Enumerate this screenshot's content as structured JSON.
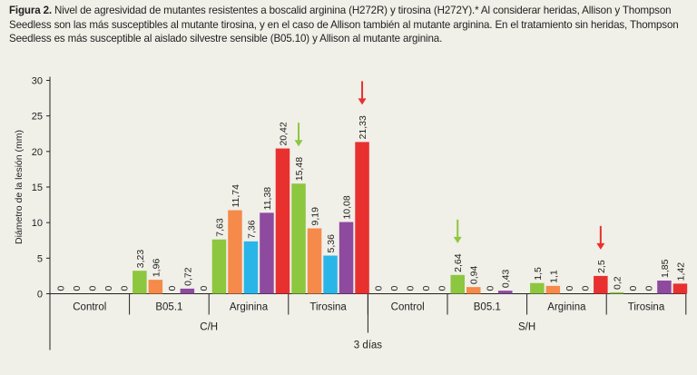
{
  "caption": {
    "label": "Figura 2.",
    "text": "Nivel de agresividad de mutantes resistentes a boscalid arginina (H272R) y tirosina (H272Y).* Al considerar heridas, Allison y Thompson Seedless son las más susceptibles al mutante tirosina, y en el caso de Allison también al mutante arginina. En el tratamiento sin heridas, Thompson Seedless es más susceptible al aislado silvestre sensible (B05.10) y Allison al mutante arginina."
  },
  "chart_data": {
    "type": "bar",
    "title": "",
    "ylabel": "Diámetro de la lesión (mm)",
    "xlabel": "3 días",
    "ylim": [
      0,
      30
    ],
    "yticks": [
      0,
      5,
      10,
      15,
      20,
      25,
      30
    ],
    "groups": [
      "C/H",
      "S/H"
    ],
    "categories": [
      "Control",
      "B05.1",
      "Arginina",
      "Tirosina"
    ],
    "series": [
      {
        "name": "serie 1",
        "color": "#8dc63f"
      },
      {
        "name": "serie 2",
        "color": "#f58a4b"
      },
      {
        "name": "serie 3",
        "color": "#29b5e8"
      },
      {
        "name": "serie 4",
        "color": "#8e4a9f"
      },
      {
        "name": "serie 5",
        "color": "#e8302f"
      }
    ],
    "values": {
      "C/H": {
        "Control": [
          0,
          0,
          0,
          0,
          0
        ],
        "B05.1": [
          3.23,
          1.96,
          0,
          0.72,
          0
        ],
        "Arginina": [
          7.63,
          11.74,
          7.36,
          11.38,
          20.42
        ],
        "Tirosina": [
          15.48,
          9.19,
          5.36,
          10.08,
          21.33
        ]
      },
      "S/H": {
        "Control": [
          0,
          0,
          0,
          0,
          0
        ],
        "B05.1": [
          2.64,
          0.94,
          0,
          0.43,
          0
        ],
        "Arginina": [
          1.5,
          1.1,
          0,
          0,
          2.5
        ],
        "Tirosina": [
          0.2,
          0,
          0,
          1.85,
          1.42
        ]
      }
    },
    "labels": {
      "C/H": {
        "Control": [
          "0",
          "0",
          "0",
          "0",
          "0"
        ],
        "B05.1": [
          "3,23",
          "1,96",
          "0",
          "0,72",
          "0"
        ],
        "Arginina": [
          "7,63",
          "11,74",
          "7,36",
          "11,38",
          "20,42"
        ],
        "Tirosina": [
          "15,48",
          "9,19",
          "5,36",
          "10,08",
          "21,33"
        ]
      },
      "S/H": {
        "Control": [
          "0",
          "0",
          "0",
          "0",
          "0"
        ],
        "B05.1": [
          "2,64",
          "0,94",
          "0",
          "0,43",
          ""
        ],
        "Arginina": [
          "1,5",
          "1,1",
          "0",
          "0",
          "2,5"
        ],
        "Tirosina": [
          "0,2",
          "0",
          "0",
          "1,85",
          "1,42"
        ]
      }
    },
    "annotations": [
      {
        "group": "C/H",
        "category": "Tirosina",
        "series": 0,
        "type": "arrow-down",
        "color": "#8dc63f"
      },
      {
        "group": "C/H",
        "category": "Tirosina",
        "series": 4,
        "type": "arrow-down",
        "color": "#e8302f"
      },
      {
        "group": "S/H",
        "category": "B05.1",
        "series": 0,
        "type": "arrow-down",
        "color": "#8dc63f"
      },
      {
        "group": "S/H",
        "category": "Arginina",
        "series": 4,
        "type": "arrow-down",
        "color": "#e8302f"
      }
    ]
  }
}
